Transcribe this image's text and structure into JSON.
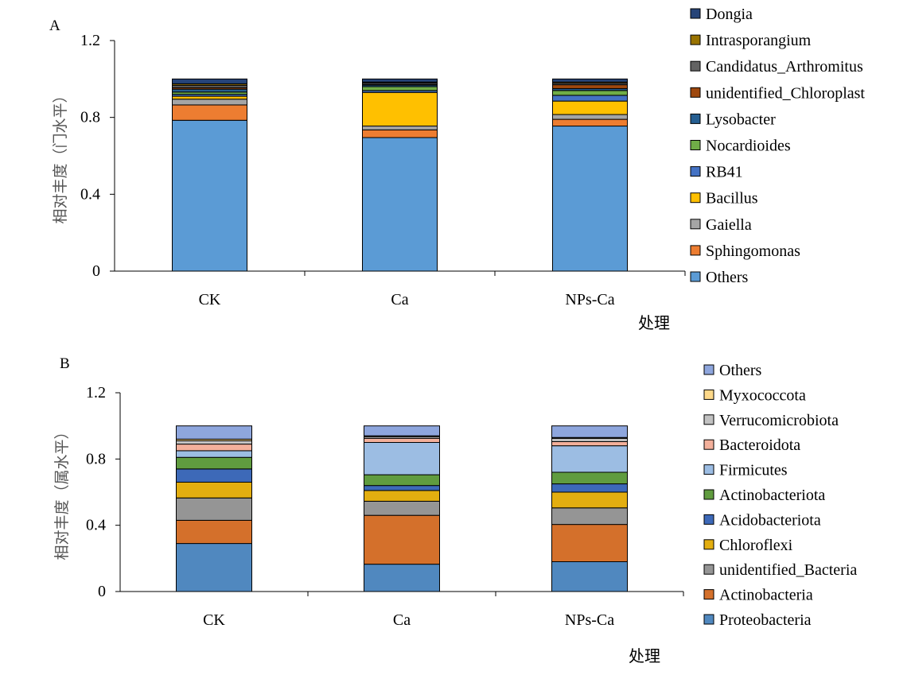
{
  "chart_data": [
    {
      "panel_label": "A",
      "type": "bar",
      "stacked": true,
      "xlabel": "处理",
      "ylabel": "相对丰度（门水平）",
      "ylim": [
        0,
        1.2
      ],
      "yticks": [
        "0",
        "0.4",
        "0.8",
        "1.2"
      ],
      "categories": [
        "CK",
        "Ca",
        "NPs-Ca"
      ],
      "legend_position": "right",
      "series": [
        {
          "name": "Others",
          "color": "#5b9bd5",
          "values": [
            0.785,
            0.695,
            0.755
          ]
        },
        {
          "name": "Sphingomonas",
          "color": "#ed7d31",
          "values": [
            0.08,
            0.04,
            0.035
          ]
        },
        {
          "name": "Gaiella",
          "color": "#a5a5a5",
          "values": [
            0.03,
            0.02,
            0.025
          ]
        },
        {
          "name": "Bacillus",
          "color": "#ffc000",
          "values": [
            0.015,
            0.175,
            0.07
          ]
        },
        {
          "name": "RB41",
          "color": "#4472c4",
          "values": [
            0.01,
            0.01,
            0.03
          ]
        },
        {
          "name": "Nocardioides",
          "color": "#70ad47",
          "values": [
            0.012,
            0.02,
            0.025
          ]
        },
        {
          "name": "Lysobacter",
          "color": "#255e91",
          "values": [
            0.015,
            0.008,
            0.01
          ]
        },
        {
          "name": "unidentified_Chloroplast",
          "color": "#9e480e",
          "values": [
            0.008,
            0.004,
            0.02
          ]
        },
        {
          "name": "Candidatus_Arthromitus",
          "color": "#636363",
          "values": [
            0.012,
            0.008,
            0.008
          ]
        },
        {
          "name": "Intrasporangium",
          "color": "#997300",
          "values": [
            0.008,
            0.004,
            0.006
          ]
        },
        {
          "name": "Dongia",
          "color": "#264478",
          "values": [
            0.025,
            0.016,
            0.016
          ]
        }
      ]
    },
    {
      "panel_label": "B",
      "type": "bar",
      "stacked": true,
      "xlabel": "处理",
      "ylabel": "相对丰度（属水平）",
      "ylim": [
        0,
        1.2
      ],
      "yticks": [
        "0",
        "0.4",
        "0.8",
        "1.2"
      ],
      "categories": [
        "CK",
        "Ca",
        "NPs-Ca"
      ],
      "legend_position": "right",
      "series": [
        {
          "name": "Proteobacteria",
          "color": "#5088bf",
          "values": [
            0.29,
            0.165,
            0.18
          ]
        },
        {
          "name": "Actinobacteria",
          "color": "#d4702b",
          "values": [
            0.14,
            0.295,
            0.225
          ]
        },
        {
          "name": "unidentified_Bacteria",
          "color": "#959595",
          "values": [
            0.135,
            0.085,
            0.1
          ]
        },
        {
          "name": "Chloroflexi",
          "color": "#e3ae10",
          "values": [
            0.095,
            0.065,
            0.095
          ]
        },
        {
          "name": "Acidobacteriota",
          "color": "#3d69b8",
          "values": [
            0.08,
            0.03,
            0.05
          ]
        },
        {
          "name": "Actinobacteriota",
          "color": "#609c3f",
          "values": [
            0.07,
            0.065,
            0.07
          ]
        },
        {
          "name": "Firmicutes",
          "color": "#9cbde3",
          "values": [
            0.04,
            0.195,
            0.16
          ]
        },
        {
          "name": "Bacteroidota",
          "color": "#f3b09b",
          "values": [
            0.04,
            0.025,
            0.025
          ]
        },
        {
          "name": "Verrucomicrobiota",
          "color": "#c2c2c2",
          "values": [
            0.02,
            0.01,
            0.02
          ]
        },
        {
          "name": "Myxococcota",
          "color": "#fdd889",
          "values": [
            0.01,
            0.005,
            0.005
          ]
        },
        {
          "name": "Others",
          "color": "#8ea6dd",
          "values": [
            0.08,
            0.06,
            0.07
          ]
        }
      ]
    }
  ]
}
